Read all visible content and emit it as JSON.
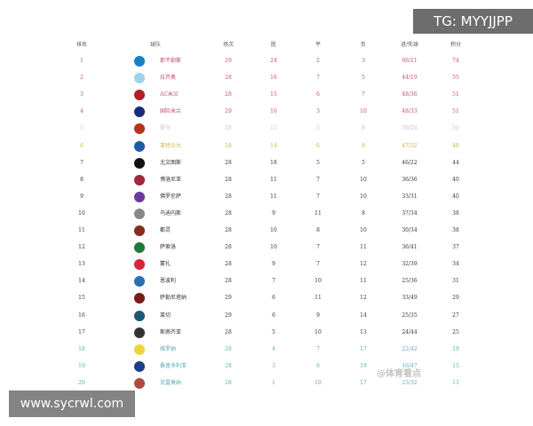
{
  "headers": [
    "排名",
    "球队",
    "场次",
    "胜",
    "平",
    "负",
    "进/失球",
    "积分"
  ],
  "colors": {
    "top4": "#c25068",
    "europa": "#d8b8c0",
    "conference": "#c9b33a",
    "relegation": "#5aaab8",
    "normal": "#333333"
  },
  "rows": [
    {
      "rank": "1",
      "team": "那不勒斯",
      "p": "29",
      "w": "24",
      "d": "2",
      "l": "3",
      "gf": "66/21",
      "pts": "74",
      "zone": "top4",
      "logo": "#1a7fc4"
    },
    {
      "rank": "2",
      "team": "拉齐奥",
      "p": "28",
      "w": "16",
      "d": "7",
      "l": "5",
      "gf": "44/19",
      "pts": "55",
      "zone": "top4",
      "logo": "#9fd3ea"
    },
    {
      "rank": "3",
      "team": "AC米兰",
      "p": "28",
      "w": "15",
      "d": "6",
      "l": "7",
      "gf": "48/36",
      "pts": "51",
      "zone": "top4",
      "logo": "#b0202a"
    },
    {
      "rank": "4",
      "team": "国际米兰",
      "p": "29",
      "w": "16",
      "d": "3",
      "l": "10",
      "gf": "48/33",
      "pts": "51",
      "zone": "top4",
      "logo": "#1b2a7a"
    },
    {
      "rank": "5",
      "team": "罗马",
      "p": "28",
      "w": "15",
      "d": "5",
      "l": "8",
      "gf": "39/28",
      "pts": "50",
      "zone": "europa",
      "logo": "#b5341e"
    },
    {
      "rank": "6",
      "team": "亚特兰大",
      "p": "28",
      "w": "14",
      "d": "6",
      "l": "8",
      "gf": "47/32",
      "pts": "48",
      "zone": "conference",
      "logo": "#1f5aa6"
    },
    {
      "rank": "7",
      "team": "尤文图斯",
      "p": "28",
      "w": "18",
      "d": "5",
      "l": "5",
      "gf": "46/22",
      "pts": "44",
      "zone": "normal",
      "logo": "#111111"
    },
    {
      "rank": "8",
      "team": "博洛尼亚",
      "p": "28",
      "w": "11",
      "d": "7",
      "l": "10",
      "gf": "36/36",
      "pts": "40",
      "zone": "normal",
      "logo": "#a1283a"
    },
    {
      "rank": "9",
      "team": "佛罗伦萨",
      "p": "28",
      "w": "11",
      "d": "7",
      "l": "10",
      "gf": "33/31",
      "pts": "40",
      "zone": "normal",
      "logo": "#6b3a9c"
    },
    {
      "rank": "10",
      "team": "乌迪内斯",
      "p": "28",
      "w": "9",
      "d": "11",
      "l": "8",
      "gf": "37/34",
      "pts": "38",
      "zone": "normal",
      "logo": "#888888"
    },
    {
      "rank": "11",
      "team": "都灵",
      "p": "28",
      "w": "10",
      "d": "8",
      "l": "10",
      "gf": "30/34",
      "pts": "38",
      "zone": "normal",
      "logo": "#8a2a1a"
    },
    {
      "rank": "12",
      "team": "萨索洛",
      "p": "28",
      "w": "10",
      "d": "7",
      "l": "11",
      "gf": "36/41",
      "pts": "37",
      "zone": "normal",
      "logo": "#1e7a3c"
    },
    {
      "rank": "13",
      "team": "蒙扎",
      "p": "28",
      "w": "9",
      "d": "7",
      "l": "12",
      "gf": "32/39",
      "pts": "34",
      "zone": "normal",
      "logo": "#d8233a"
    },
    {
      "rank": "14",
      "team": "恩波利",
      "p": "28",
      "w": "7",
      "d": "10",
      "l": "11",
      "gf": "25/36",
      "pts": "31",
      "zone": "normal",
      "logo": "#2d6eb5"
    },
    {
      "rank": "15",
      "team": "萨勒尼塔纳",
      "p": "29",
      "w": "6",
      "d": "11",
      "l": "12",
      "gf": "33/49",
      "pts": "29",
      "zone": "normal",
      "logo": "#7a1a1a"
    },
    {
      "rank": "16",
      "team": "莱切",
      "p": "29",
      "w": "6",
      "d": "9",
      "l": "14",
      "gf": "25/35",
      "pts": "27",
      "zone": "normal",
      "logo": "#1d5a7a"
    },
    {
      "rank": "17",
      "team": "斯佩齐亚",
      "p": "28",
      "w": "5",
      "d": "10",
      "l": "13",
      "gf": "24/44",
      "pts": "25",
      "zone": "normal",
      "logo": "#333333"
    },
    {
      "rank": "18",
      "team": "维罗纳",
      "p": "28",
      "w": "4",
      "d": "7",
      "l": "17",
      "gf": "22/42",
      "pts": "19",
      "zone": "relegation",
      "logo": "#f2d43a"
    },
    {
      "rank": "19",
      "team": "桑普多利亚",
      "p": "28",
      "w": "3",
      "d": "6",
      "l": "19",
      "gf": "16/47",
      "pts": "15",
      "zone": "relegation",
      "logo": "#1b3d8a"
    },
    {
      "rank": "20",
      "team": "克雷莫纳",
      "p": "28",
      "w": "1",
      "d": "10",
      "l": "17",
      "gf": "23/32",
      "pts": "13",
      "zone": "relegation",
      "logo": "#b04a40"
    }
  ],
  "overlays": {
    "tg": "TG: MYYJJPP",
    "site": "www.sycrwl.com",
    "watermark": "@体育看点"
  }
}
